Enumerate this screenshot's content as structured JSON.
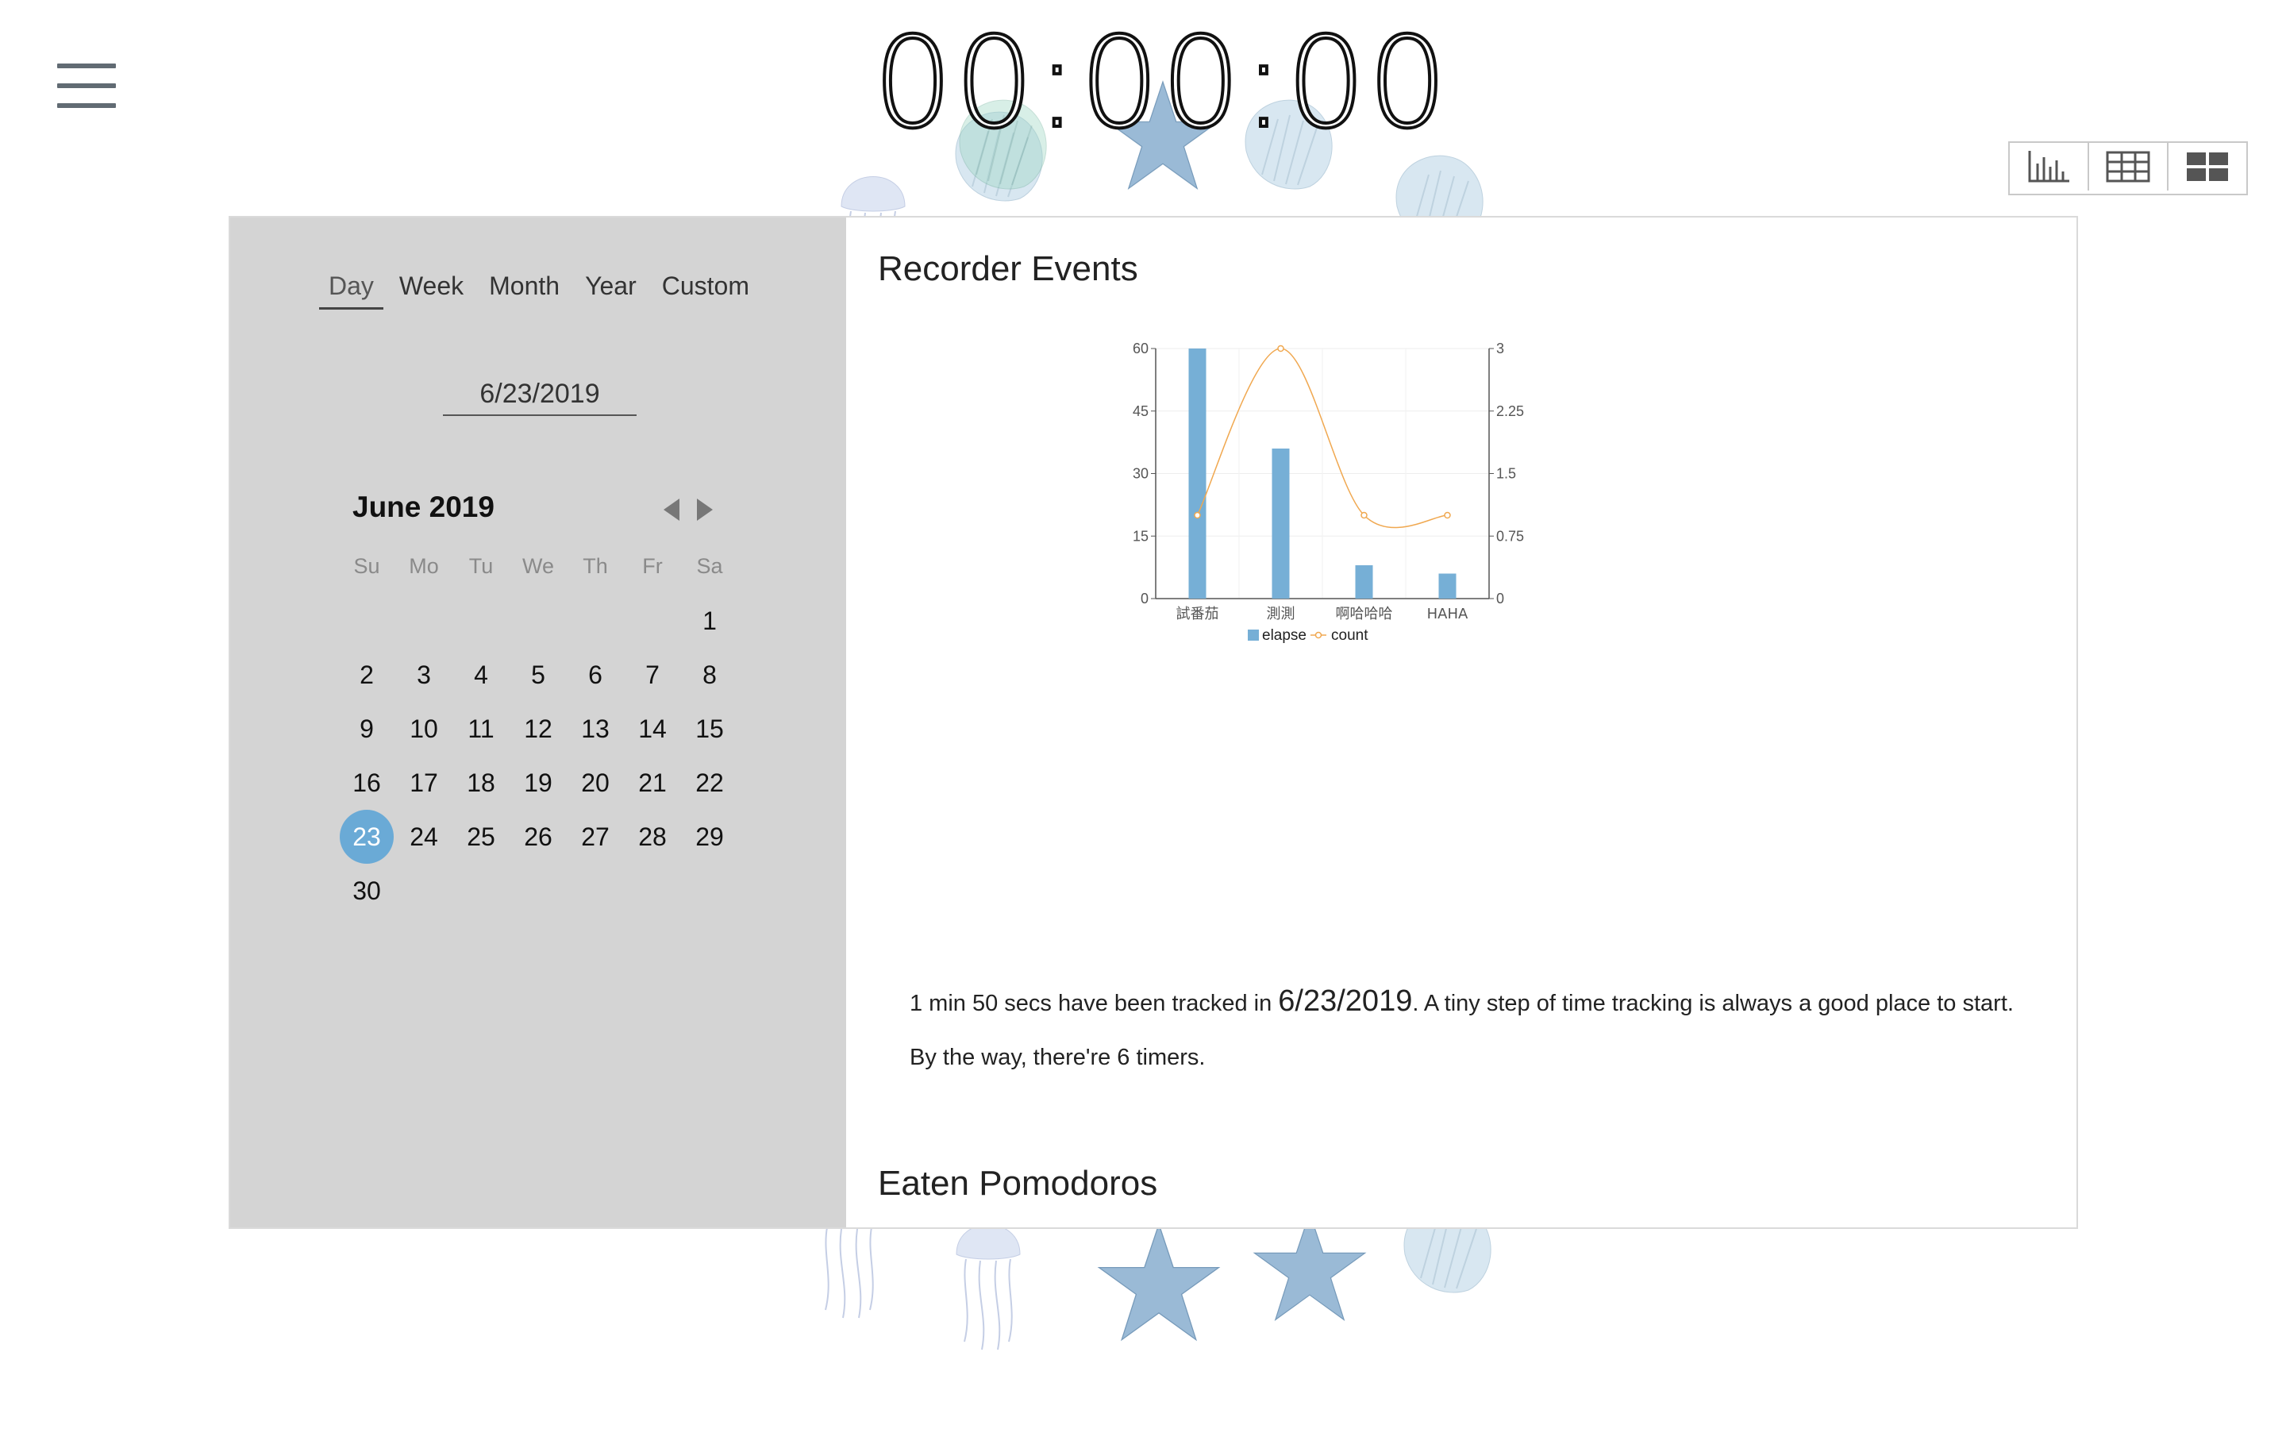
{
  "timer": "00:00:00",
  "view_toggle": [
    "chart-view-icon",
    "table-view-icon",
    "grid-view-icon"
  ],
  "range_tabs": [
    {
      "label": "Day",
      "active": true
    },
    {
      "label": "Week",
      "active": false
    },
    {
      "label": "Month",
      "active": false
    },
    {
      "label": "Year",
      "active": false
    },
    {
      "label": "Custom",
      "active": false
    }
  ],
  "date_input": "6/23/2019",
  "calendar": {
    "month_label": "June 2019",
    "weekdays": [
      "Su",
      "Mo",
      "Tu",
      "We",
      "Th",
      "Fr",
      "Sa"
    ],
    "leading_blanks": 6,
    "days": [
      "1",
      "2",
      "3",
      "4",
      "5",
      "6",
      "7",
      "8",
      "9",
      "10",
      "11",
      "12",
      "13",
      "14",
      "15",
      "16",
      "17",
      "18",
      "19",
      "20",
      "21",
      "22",
      "23",
      "24",
      "25",
      "26",
      "27",
      "28",
      "29",
      "30"
    ],
    "selected_day": "23",
    "accent_color": "#6aaad6"
  },
  "recorder": {
    "title": "Recorder Events"
  },
  "chart_data": {
    "type": "bar",
    "categories": [
      "試番茄",
      "測測",
      "啊哈哈哈",
      "HAHA"
    ],
    "series": [
      {
        "name": "elapse",
        "type": "bar",
        "axis": "left",
        "values": [
          60,
          36,
          8,
          6
        ],
        "color": "#76afd6"
      },
      {
        "name": "count",
        "type": "line",
        "axis": "right",
        "values": [
          1,
          3,
          1,
          1
        ],
        "color": "#f0a850"
      }
    ],
    "y_left": {
      "min": 0,
      "max": 60,
      "ticks": [
        "0",
        "15",
        "30",
        "45",
        "60"
      ]
    },
    "y_right": {
      "min": 0,
      "max": 3,
      "ticks": [
        "0",
        "0.75",
        "1.5",
        "2.25",
        "3"
      ]
    },
    "legend_position": "bottom",
    "grid": true
  },
  "summary": {
    "prefix": "1 min 50 secs have been tracked in ",
    "date": "6/23/2019",
    "suffix": ". A tiny step of time tracking is always a good place to start.",
    "timers_line": "By the way, there're 6 timers."
  },
  "pomodoros": {
    "title": "Eaten Pomodoros"
  }
}
